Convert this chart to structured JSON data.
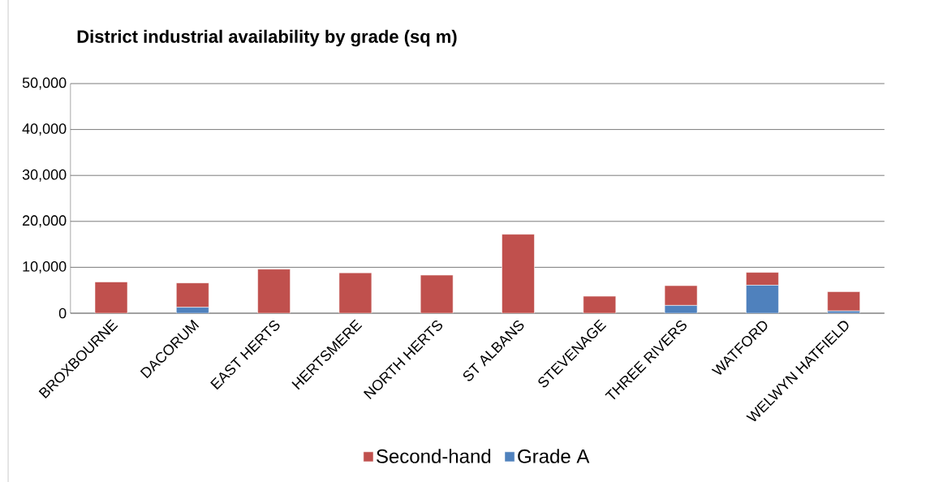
{
  "chart_data": {
    "type": "bar",
    "title": "District industrial availability by grade (sq m)",
    "categories": [
      "BROXBOURNE",
      "DACORUM",
      "EAST HERTS",
      "HERTSMERE",
      "NORTH HERTS",
      "ST ALBANS",
      "STEVENAGE",
      "THREE RIVERS",
      "WATFORD",
      "WELWYN HATFIELD"
    ],
    "stacked": true,
    "series": [
      {
        "name": "Grade A",
        "color": "#4f81bd",
        "values": [
          0,
          1300,
          0,
          0,
          0,
          0,
          0,
          1700,
          6100,
          500
        ]
      },
      {
        "name": "Second-hand",
        "color": "#c0504d",
        "values": [
          6800,
          5300,
          9600,
          8800,
          8300,
          17200,
          3700,
          4300,
          2800,
          4200
        ]
      }
    ],
    "ylim": [
      0,
      50000
    ],
    "yticks": [
      {
        "value": 0,
        "label": "0"
      },
      {
        "value": 10000,
        "label": "10,000"
      },
      {
        "value": 20000,
        "label": "20,000"
      },
      {
        "value": 30000,
        "label": "30,000"
      },
      {
        "value": 40000,
        "label": "40,000"
      },
      {
        "value": 50000,
        "label": "50,000"
      }
    ],
    "grid": "y",
    "legend": "bottom"
  }
}
